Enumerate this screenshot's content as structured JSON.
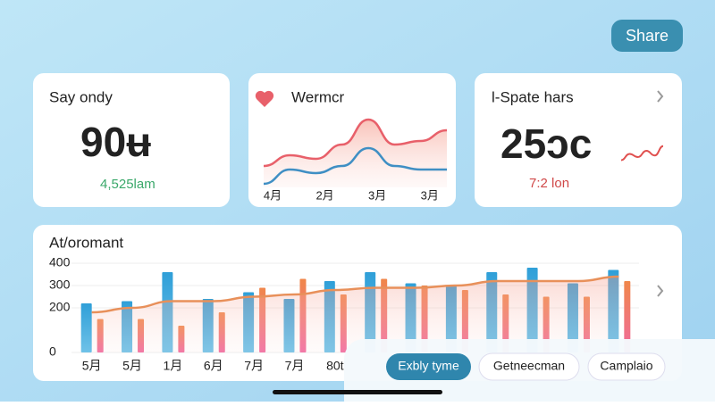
{
  "share_button": "Share",
  "cards": [
    {
      "title": "Say ondy",
      "value": "90ʉ",
      "subtitle": "4,525lam"
    },
    {
      "title": "Wermcr",
      "chart_data": {
        "type": "area",
        "categories": [
          "4月",
          null,
          "2月",
          null,
          "3月",
          null,
          "3月",
          null
        ],
        "series": [
          {
            "color": "#e8606a",
            "values": [
              30,
              45,
              40,
              60,
              95,
              60,
              65,
              80
            ]
          },
          {
            "color": "#3f8fc4",
            "values": [
              5,
              25,
              20,
              30,
              55,
              30,
              25,
              25
            ]
          }
        ],
        "ylim": [
          0,
          100
        ]
      }
    },
    {
      "title": "l-Spate hars",
      "value": "25ɔc",
      "subtitle": "7:2 lon",
      "chart_data": {
        "type": "line",
        "color": "#e0504f",
        "values": [
          30,
          50,
          40,
          60,
          45,
          75
        ],
        "ylim": [
          0,
          100
        ]
      }
    }
  ],
  "main": {
    "title": "At/oromant",
    "chart_data": {
      "type": "bar",
      "categories": [
        "5月",
        "5月",
        "1月",
        "6月",
        "7月",
        "7月",
        "80t",
        null,
        null,
        null,
        null,
        null,
        null,
        null
      ],
      "series": [
        {
          "color": "#2f9fd8",
          "values": [
            220,
            230,
            360,
            240,
            270,
            240,
            320,
            360,
            310,
            300,
            360,
            380,
            310,
            370
          ]
        },
        {
          "color": "#f0874a",
          "values": [
            150,
            150,
            120,
            180,
            290,
            330,
            260,
            330,
            300,
            280,
            260,
            250,
            250,
            320
          ]
        },
        {
          "color": "#e8905a",
          "type": "line",
          "values": [
            180,
            200,
            230,
            230,
            250,
            260,
            280,
            290,
            290,
            300,
            320,
            320,
            320,
            340
          ]
        }
      ],
      "ylim": [
        0,
        420
      ],
      "yticks": [
        0,
        200,
        300,
        400
      ]
    }
  },
  "controls": [
    "Exbly tyme",
    "Getneecman",
    "Camplaio"
  ]
}
